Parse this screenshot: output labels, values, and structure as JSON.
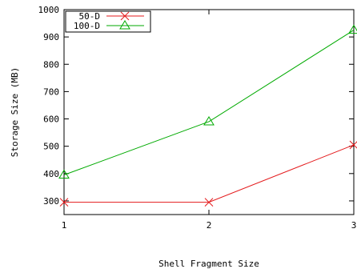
{
  "chart_data": {
    "type": "line",
    "xlabel": "Shell Fragment Size",
    "ylabel": "Storage Size (MB)",
    "x": [
      1,
      2,
      3
    ],
    "xlim": [
      1,
      3
    ],
    "ylim": [
      250,
      1000
    ],
    "xticks": [
      "1",
      "2",
      "3"
    ],
    "yticks": [
      "300",
      "400",
      "500",
      "600",
      "700",
      "800",
      "900",
      "1000"
    ],
    "grid": false,
    "legend_position": "top-left",
    "series": [
      {
        "name": "50-D",
        "values": [
          295,
          295,
          505
        ],
        "color": "#e41a1c",
        "marker": "x-cross"
      },
      {
        "name": "100-D",
        "values": [
          395,
          590,
          925
        ],
        "color": "#00aa00",
        "marker": "triangle"
      }
    ]
  }
}
